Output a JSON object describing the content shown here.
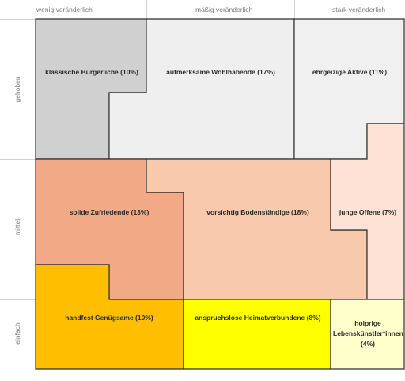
{
  "columns": [
    "wenig veränderlich",
    "mäßig veränderlich",
    "stark veränderlich"
  ],
  "rows": [
    "gehoben",
    "mittel",
    "einfach"
  ],
  "segments": [
    {
      "label": "klassische Bürgerliche (10%)",
      "color": "#d0d0d0"
    },
    {
      "label": "aufmerksame Wohlhabende (17%)",
      "color": "#efefef"
    },
    {
      "label": "ehrgeizige Aktive (11%)",
      "color": "#f0f0f0"
    },
    {
      "label": "solide Zufriedende (13%)",
      "color": "#f2a986"
    },
    {
      "label": "vorsichtig Bodenständige (18%)",
      "color": "#f8c9ad"
    },
    {
      "label": "junge Offene (7%)",
      "color": "#fde2d5"
    },
    {
      "label": "handfest Genügsame (10%)",
      "color": "#ffbf00"
    },
    {
      "label": "anspruchslose Heimatverbundene (8%)",
      "color": "#ffff00"
    },
    {
      "label": "holprige Lebenskünstler*innen (4%)",
      "color": "#ffffcc"
    }
  ]
}
